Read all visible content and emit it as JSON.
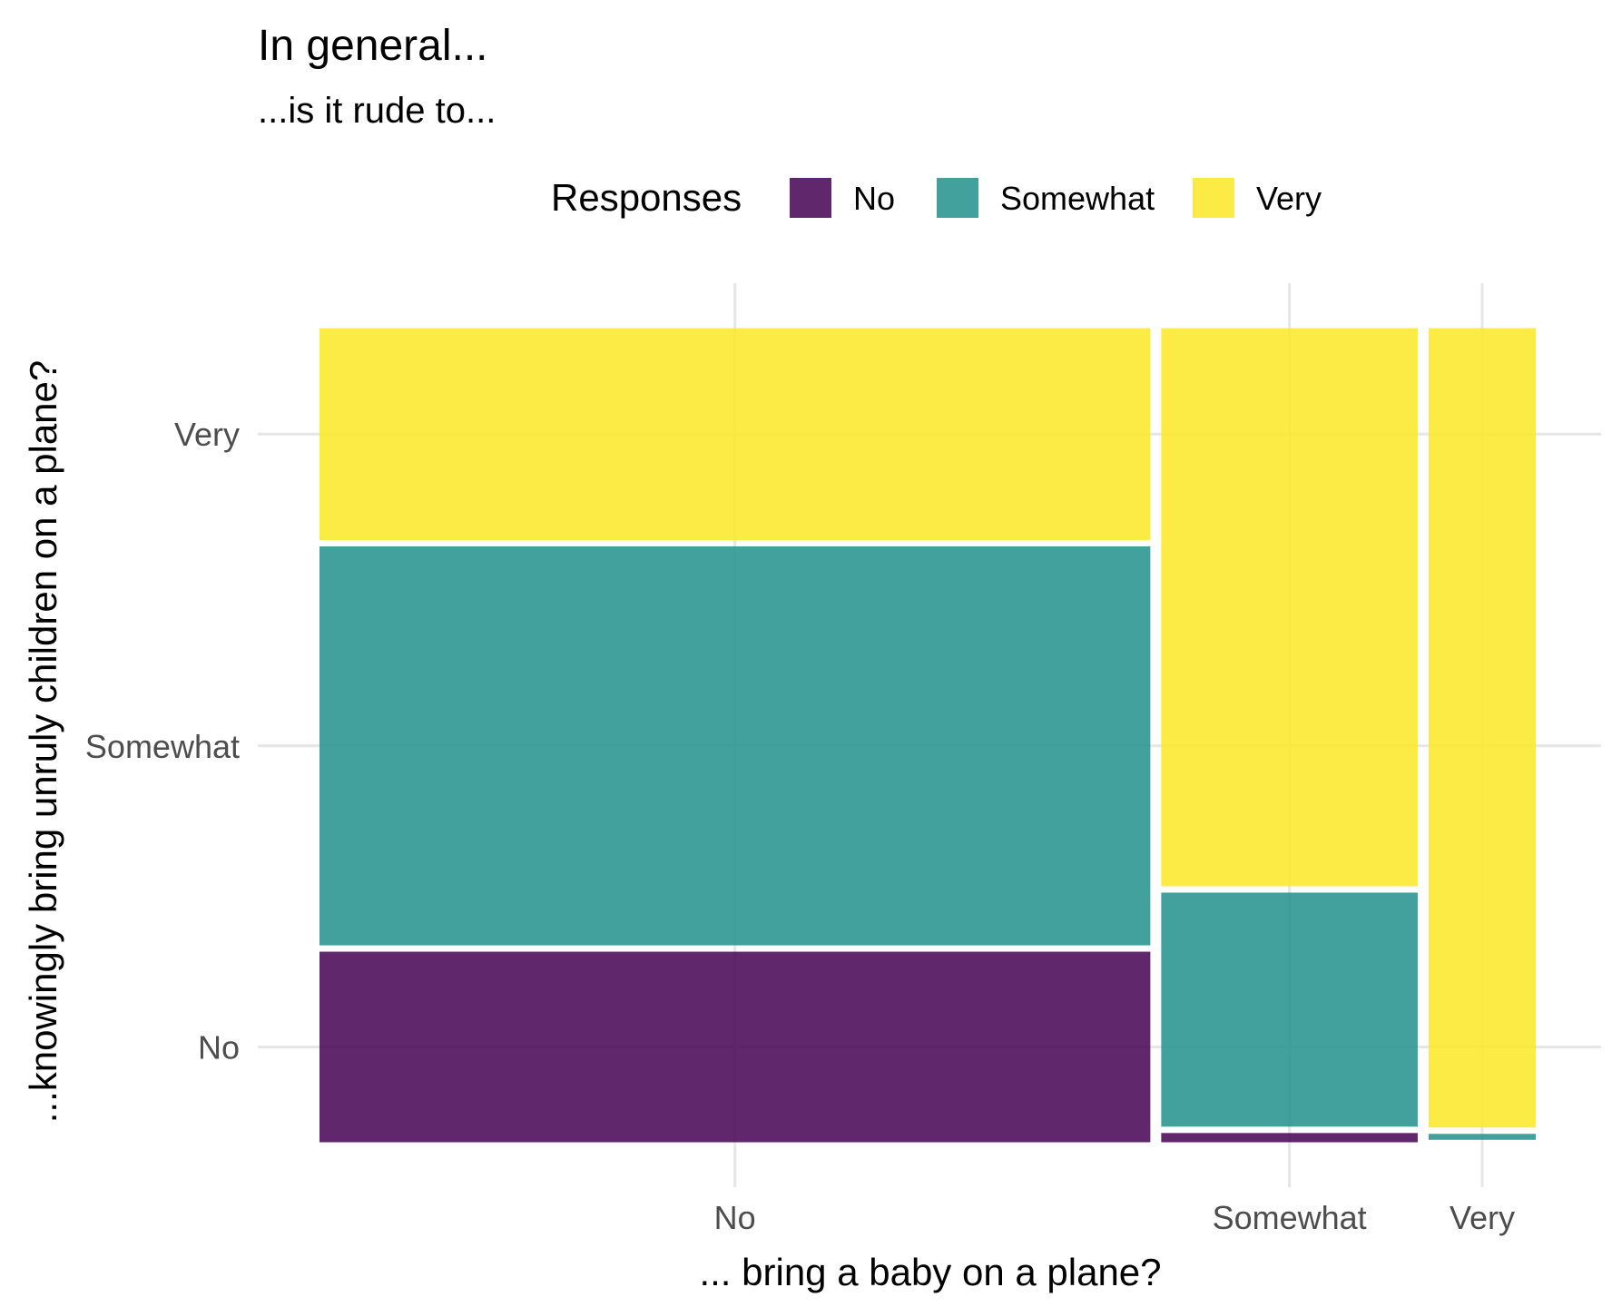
{
  "chart_data": {
    "type": "mosaic",
    "title": "In general...",
    "subtitle": "...is it rude to...",
    "xlabel": "... bring a baby on a plane?",
    "ylabel": "...knowingly bring unruly children on a plane?",
    "legend": {
      "title": "Responses",
      "position": "top",
      "entries": [
        {
          "label": "No",
          "color": "#440154"
        },
        {
          "label": "Somewhat",
          "color": "#21908C"
        },
        {
          "label": "Very",
          "color": "#FDE725"
        }
      ]
    },
    "x_categories": [
      "No",
      "Somewhat",
      "Very"
    ],
    "y_categories": [
      "No",
      "Somewhat",
      "Very"
    ],
    "x_proportions": [
      0.69,
      0.213,
      0.089
    ],
    "columns": [
      {
        "x": "No",
        "fill": {
          "No": 0.24,
          "Somewhat": 0.494,
          "Very": 0.266
        }
      },
      {
        "x": "Somewhat",
        "fill": {
          "No": 0.019,
          "Somewhat": 0.293,
          "Very": 0.688
        }
      },
      {
        "x": "Very",
        "fill": {
          "No": 0.003,
          "Somewhat": 0.015,
          "Very": 0.982
        }
      }
    ],
    "grid": true
  }
}
